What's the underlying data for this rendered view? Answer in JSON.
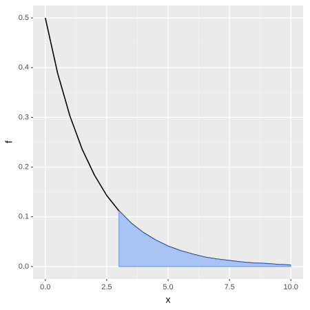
{
  "chart_data": {
    "type": "line",
    "x_label": "x",
    "y_label": "f",
    "x": [
      0,
      0.5,
      1,
      1.5,
      2,
      2.5,
      3,
      3.5,
      4,
      4.5,
      5,
      5.5,
      6,
      6.5,
      7,
      7.5,
      8,
      8.5,
      9,
      9.5,
      10
    ],
    "series": [
      {
        "kind": "line",
        "color": "#000000",
        "values": [
          0.5,
          0.389,
          0.303,
          0.236,
          0.184,
          0.143,
          0.112,
          0.087,
          0.068,
          0.053,
          0.041,
          0.032,
          0.025,
          0.019,
          0.015,
          0.012,
          0.009,
          0.007,
          0.006,
          0.004,
          0.003
        ]
      },
      {
        "kind": "area",
        "color": "#a4c2f4",
        "edge_color": "#5b7fd6",
        "values": [
          null,
          null,
          null,
          null,
          null,
          null,
          0.112,
          0.087,
          0.068,
          0.053,
          0.041,
          0.032,
          0.025,
          0.019,
          0.015,
          0.012,
          0.009,
          0.007,
          0.006,
          0.004,
          0.003
        ]
      }
    ],
    "xlim": [
      -0.5,
      10.5
    ],
    "ylim": [
      -0.025,
      0.525
    ],
    "xticks": [
      {
        "value": 0,
        "label": "0.0"
      },
      2.5,
      {
        "value": 5,
        "label": "5.0"
      },
      7.5,
      {
        "value": 10,
        "label": "10.0"
      }
    ],
    "yticks": [
      {
        "value": 0,
        "label": "0.0"
      },
      0.1,
      0.2,
      0.3,
      0.4,
      0.5
    ],
    "grid": true
  }
}
